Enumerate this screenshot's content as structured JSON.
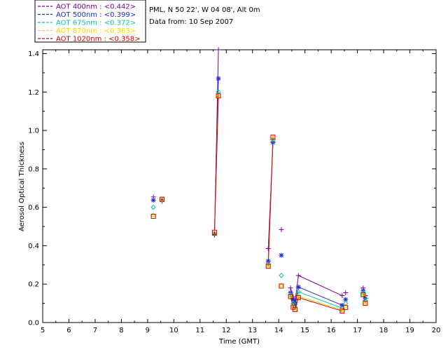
{
  "info": {
    "site": "PML, N 50 22', W 04 08', Alt 0m",
    "date": "Data from: 10 Sep 2007"
  },
  "legend": [
    {
      "label": "AOT  400nm : ",
      "value": "<0.442>",
      "color": "#7b0098"
    },
    {
      "label": "AOT  500nm : ",
      "value": "<0.399>",
      "color": "#1f2bd6"
    },
    {
      "label": "AOT  675nm : ",
      "value": "<0.372>",
      "color": "#00c89a"
    },
    {
      "label": "AOT  870nm : ",
      "value": "<0.363>",
      "color": "#ffd400"
    },
    {
      "label": "AOT 1020nm : ",
      "value": "<0.358>",
      "color": "#d40000"
    }
  ],
  "chart_data": {
    "type": "line",
    "title": "",
    "xlabel": "Time (GMT)",
    "ylabel": "Aerosol Optical Thickness",
    "xlim": [
      5,
      20
    ],
    "ylim": [
      0,
      1.42
    ],
    "xticks": [
      "5",
      "6",
      "7",
      "8",
      "9",
      "10",
      "11",
      "12",
      "13",
      "14",
      "15",
      "16",
      "17",
      "18",
      "19",
      "20"
    ],
    "yticks": [
      "0.0",
      "0.2",
      "0.4",
      "0.6",
      "0.8",
      "1.0",
      "1.2",
      "1.4"
    ],
    "series": [
      {
        "name": "AOT 400nm",
        "color": "#7b0098",
        "marker": "plus",
        "points": [
          [
            9.22,
            0.654
          ],
          [
            9.55,
            0.632
          ],
          [
            11.55,
            0.455
          ],
          [
            11.7,
            1.42
          ],
          [
            13.6,
            0.385
          ],
          [
            13.78,
            0.94
          ],
          [
            14.1,
            0.484
          ],
          [
            14.45,
            0.18
          ],
          [
            14.55,
            0.135
          ],
          [
            14.62,
            0.105
          ],
          [
            14.75,
            0.245
          ],
          [
            16.42,
            0.14
          ],
          [
            16.55,
            0.155
          ],
          [
            17.22,
            0.18
          ],
          [
            17.3,
            0.14
          ]
        ]
      },
      {
        "name": "AOT 500nm",
        "color": "#1f2bd6",
        "marker": "star",
        "points": [
          [
            9.22,
            0.637
          ],
          [
            9.55,
            0.637
          ],
          [
            11.55,
            0.462
          ],
          [
            11.7,
            1.27
          ],
          [
            13.6,
            0.32
          ],
          [
            13.78,
            0.938
          ],
          [
            14.1,
            0.35
          ],
          [
            14.45,
            0.155
          ],
          [
            14.55,
            0.12
          ],
          [
            14.62,
            0.095
          ],
          [
            14.75,
            0.185
          ],
          [
            16.42,
            0.09
          ],
          [
            16.55,
            0.12
          ],
          [
            17.22,
            0.165
          ],
          [
            17.3,
            0.125
          ]
        ]
      },
      {
        "name": "AOT 675nm",
        "color": "#00c89a",
        "marker": "diamond",
        "points": [
          [
            9.22,
            0.6
          ],
          [
            9.55,
            0.64
          ],
          [
            11.55,
            0.466
          ],
          [
            11.7,
            1.2
          ],
          [
            13.6,
            0.305
          ],
          [
            13.78,
            0.95
          ],
          [
            14.1,
            0.245
          ],
          [
            14.45,
            0.145
          ],
          [
            14.55,
            0.1
          ],
          [
            14.62,
            0.08
          ],
          [
            14.75,
            0.16
          ],
          [
            16.42,
            0.075
          ],
          [
            16.55,
            0.1
          ],
          [
            17.22,
            0.155
          ],
          [
            17.3,
            0.115
          ]
        ]
      },
      {
        "name": "AOT 870nm",
        "color": "#ffd400",
        "marker": "triangle",
        "points": [
          [
            9.22,
            0.56
          ],
          [
            9.55,
            0.642
          ],
          [
            11.55,
            0.468
          ],
          [
            11.7,
            1.18
          ],
          [
            13.6,
            0.295
          ],
          [
            13.78,
            0.96
          ],
          [
            14.1,
            0.195
          ],
          [
            14.45,
            0.138
          ],
          [
            14.55,
            0.085
          ],
          [
            14.62,
            0.072
          ],
          [
            14.75,
            0.138
          ],
          [
            16.42,
            0.065
          ],
          [
            16.55,
            0.085
          ],
          [
            17.22,
            0.148
          ],
          [
            17.3,
            0.103
          ]
        ]
      },
      {
        "name": "AOT 1020nm",
        "color": "#d40000",
        "marker": "square",
        "points": [
          [
            9.22,
            0.553
          ],
          [
            9.55,
            0.642
          ],
          [
            11.55,
            0.47
          ],
          [
            11.7,
            1.18
          ],
          [
            13.6,
            0.293
          ],
          [
            13.78,
            0.965
          ],
          [
            14.1,
            0.19
          ],
          [
            14.45,
            0.135
          ],
          [
            14.55,
            0.08
          ],
          [
            14.62,
            0.068
          ],
          [
            14.75,
            0.13
          ],
          [
            16.42,
            0.06
          ],
          [
            16.55,
            0.078
          ],
          [
            17.22,
            0.145
          ],
          [
            17.3,
            0.1
          ]
        ]
      }
    ],
    "connected_segments": [
      [
        2,
        3
      ],
      [
        4,
        5
      ],
      [
        10,
        11
      ],
      [
        13,
        14
      ],
      [
        7,
        8
      ],
      [
        8,
        9
      ],
      [
        9,
        10
      ]
    ],
    "grid": false,
    "legend_position": "top-left"
  }
}
